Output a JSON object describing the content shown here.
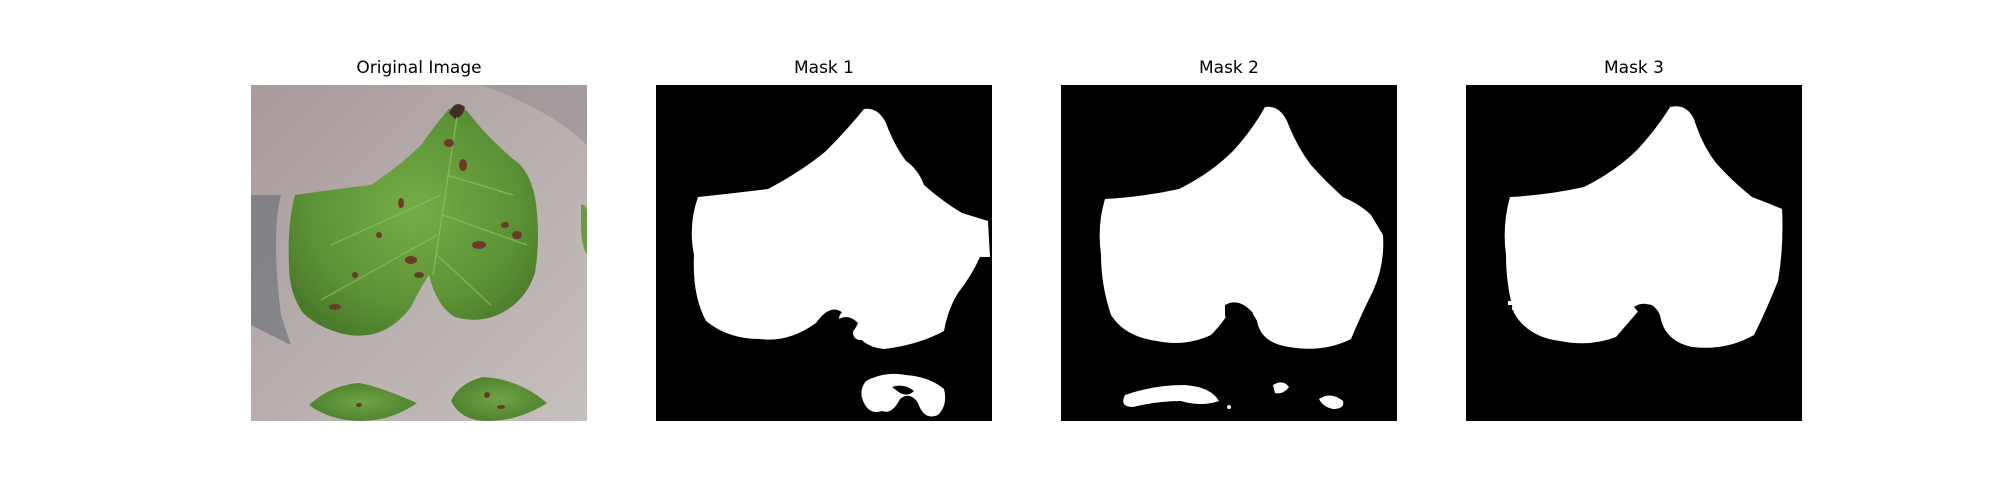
{
  "panels": [
    {
      "title": "Original Image"
    },
    {
      "title": "Mask 1"
    },
    {
      "title": "Mask 2"
    },
    {
      "title": "Mask 3"
    }
  ],
  "colors": {
    "mask_background": "#000000",
    "mask_foreground": "#ffffff",
    "leaf_green": "#5f9a3a",
    "background_surface": "#b3a8a8"
  }
}
